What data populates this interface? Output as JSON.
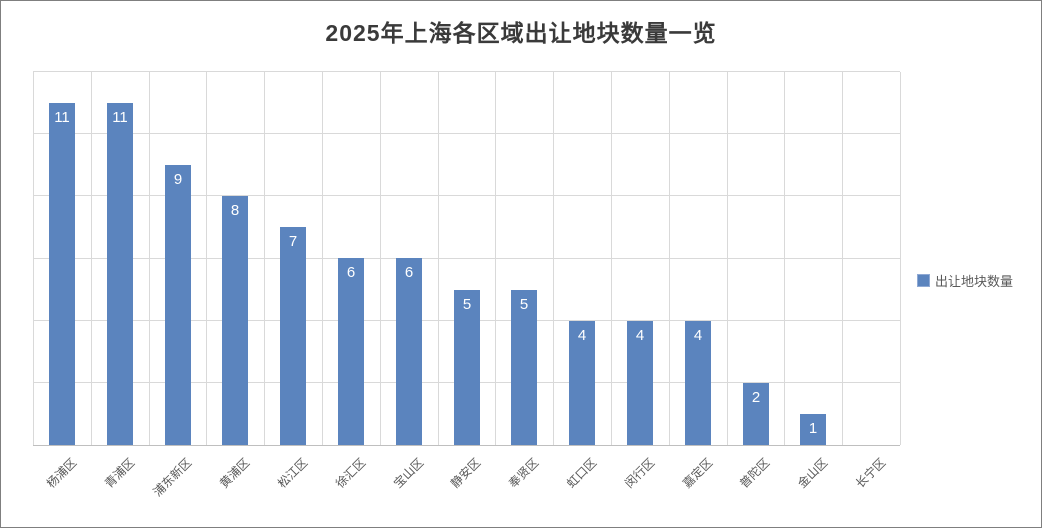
{
  "chart_data": {
    "type": "bar",
    "title": "2025年上海各区域出让地块数量一览",
    "categories": [
      "杨浦区",
      "青浦区",
      "浦东新区",
      "黄浦区",
      "松江区",
      "徐汇区",
      "宝山区",
      "静安区",
      "奉贤区",
      "虹口区",
      "闵行区",
      "嘉定区",
      "普陀区",
      "金山区",
      "长宁区"
    ],
    "series": [
      {
        "name": "出让地块数量",
        "values": [
          11,
          11,
          9,
          8,
          7,
          6,
          6,
          5,
          5,
          4,
          4,
          4,
          2,
          1,
          0
        ]
      }
    ],
    "data_labels_shown": [
      "11",
      "11",
      "9",
      "8",
      "7",
      "6",
      "6",
      "5",
      "5",
      "4",
      "4",
      "4",
      "2",
      "1",
      ""
    ],
    "xlabel": "",
    "ylabel": "",
    "ylim": [
      0,
      12
    ],
    "gridline_step": 2,
    "grid": "both",
    "y_axis_tick_labels_visible": false,
    "legend_position": "right"
  },
  "legend": {
    "label": "出让地块数量"
  },
  "colors": {
    "bar": "#5B84BE",
    "bar_value_label": "#FFFFFF",
    "grid": "#D9D9D9",
    "axis_line": "#BFBFBF",
    "title_text": "#3A3A3A",
    "axis_label_text": "#595959",
    "legend_text": "#595959",
    "legend_marker": "#5B84BE",
    "legend_marker_border": "#8FA9D4",
    "frame_border": "#7F7F7F",
    "background": "#FFFFFF"
  }
}
